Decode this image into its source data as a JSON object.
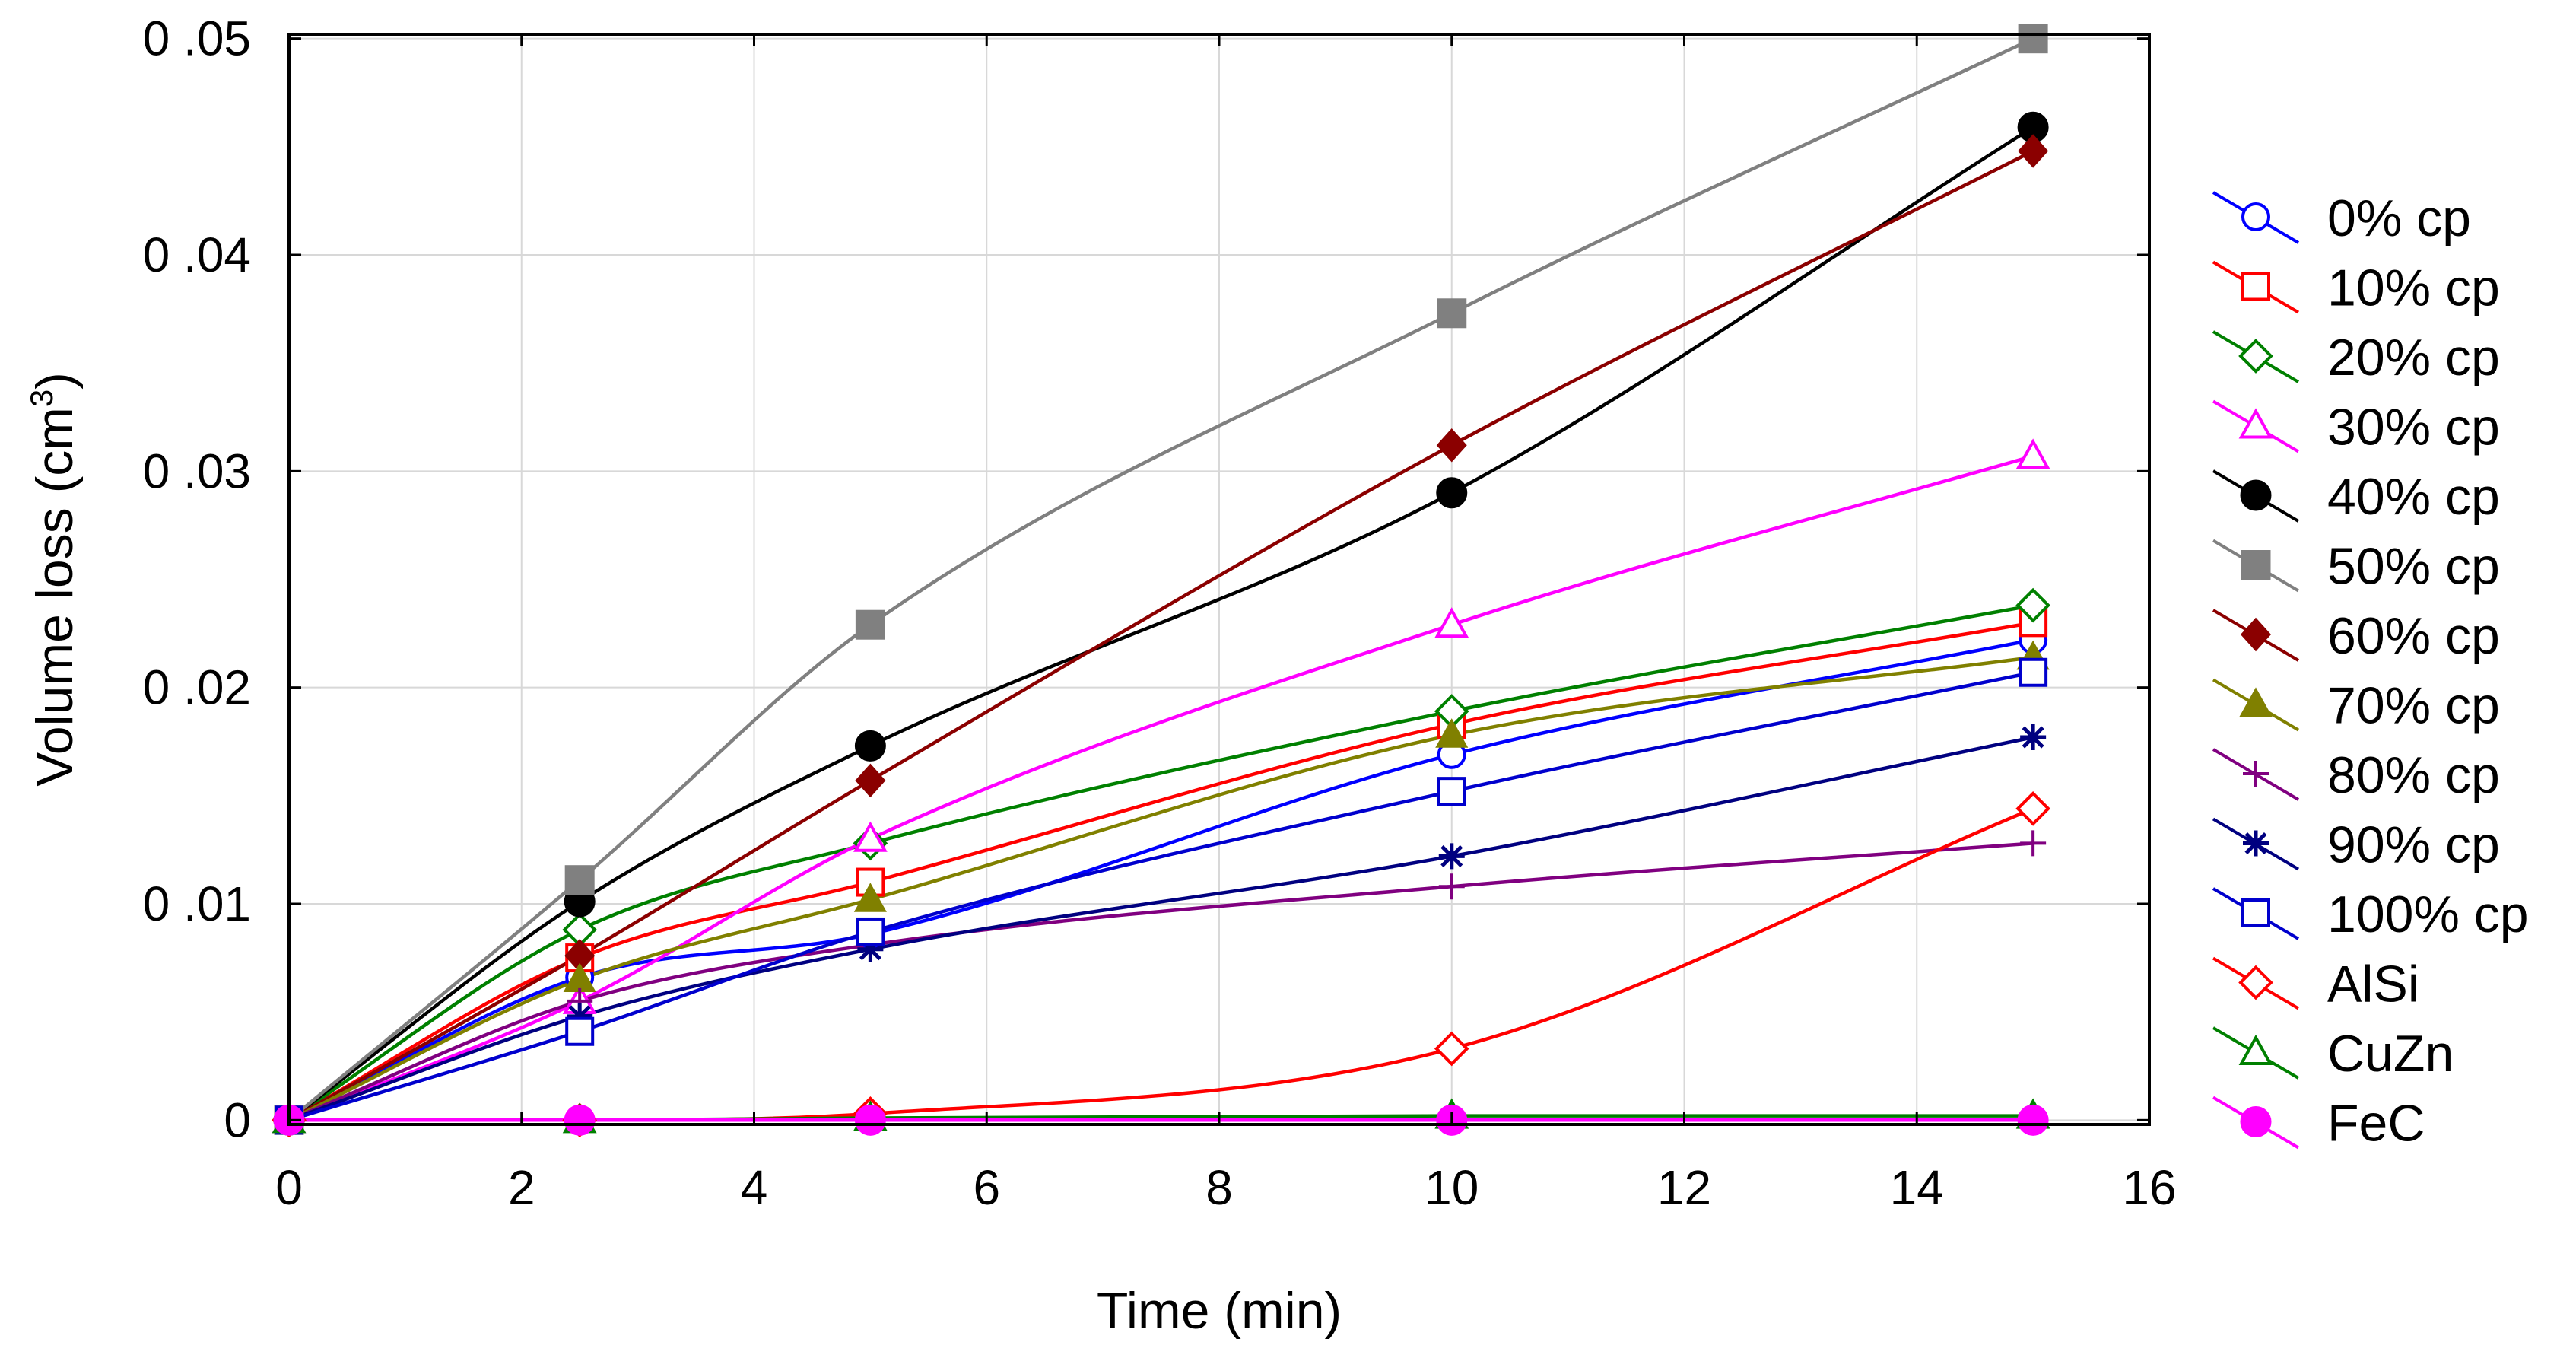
{
  "chart_data": {
    "type": "line",
    "title": "",
    "xlabel": "Time (min)",
    "ylabel": "Volume loss (cm",
    "ylabel_superscript": "3",
    "ylabel_suffix": ")",
    "xlim": [
      0,
      16
    ],
    "ylim": [
      -0.0002,
      0.0502
    ],
    "x_ticks": [
      0,
      2,
      4,
      6,
      8,
      10,
      12,
      14,
      16
    ],
    "x_tick_labels": [
      "0",
      "2",
      "4",
      "6",
      "8",
      "10",
      "12",
      "14",
      "16"
    ],
    "y_ticks": [
      0,
      0.01,
      0.02,
      0.03,
      0.04,
      0.05
    ],
    "y_tick_labels": [
      "0",
      "0 .01",
      "0 .02",
      "0 .03",
      "0 .04",
      "0 .05"
    ],
    "grid": true,
    "legend_position": "right",
    "x": [
      0,
      2.5,
      5,
      10,
      15
    ],
    "series": [
      {
        "name": "0% cp",
        "color": "#0000ff",
        "marker": "circle-open",
        "values": [
          0,
          0.0066,
          0.0086,
          0.0169,
          0.0222
        ]
      },
      {
        "name": "10% cp",
        "color": "#ff0000",
        "marker": "square-open",
        "values": [
          0,
          0.0075,
          0.011,
          0.0183,
          0.023
        ]
      },
      {
        "name": "20% cp",
        "color": "#008000",
        "marker": "diamond-open",
        "values": [
          0,
          0.0088,
          0.0128,
          0.0189,
          0.0238
        ]
      },
      {
        "name": "30% cp",
        "color": "#ff00ff",
        "marker": "triangle-open",
        "values": [
          0,
          0.0055,
          0.013,
          0.0229,
          0.0307
        ]
      },
      {
        "name": "40% cp",
        "color": "#000000",
        "marker": "circle-filled",
        "values": [
          0,
          0.0101,
          0.0173,
          0.029,
          0.0459
        ]
      },
      {
        "name": "50% cp",
        "color": "#808080",
        "marker": "square-filled",
        "values": [
          0,
          0.0111,
          0.0229,
          0.0373,
          0.05
        ]
      },
      {
        "name": "60% cp",
        "color": "#8b0000",
        "marker": "diamond-filled",
        "values": [
          0,
          0.0076,
          0.0157,
          0.0312,
          0.0448
        ]
      },
      {
        "name": "70% cp",
        "color": "#808000",
        "marker": "triangle-filled",
        "values": [
          0,
          0.0065,
          0.0102,
          0.0178,
          0.0214
        ]
      },
      {
        "name": "80% cp",
        "color": "#800080",
        "marker": "plus",
        "values": [
          0,
          0.0055,
          0.0081,
          0.0108,
          0.0128
        ]
      },
      {
        "name": "90% cp",
        "color": "#000080",
        "marker": "asterisk",
        "values": [
          0,
          0.0048,
          0.0079,
          0.0122,
          0.0177
        ]
      },
      {
        "name": "100% cp",
        "color": "#0000cd",
        "marker": "square-open",
        "values": [
          0,
          0.0041,
          0.0087,
          0.0152,
          0.0207
        ]
      },
      {
        "name": "AlSi",
        "color": "#ff0000",
        "marker": "diamond-open",
        "values": [
          0,
          0.0,
          0.0003,
          0.0033,
          0.0144
        ]
      },
      {
        "name": "CuZn",
        "color": "#008000",
        "marker": "triangle-open",
        "values": [
          0,
          0.0,
          0.0001,
          0.0002,
          0.0002
        ]
      },
      {
        "name": "FeC",
        "color": "#ff00ff",
        "marker": "circle-filled",
        "values": [
          0,
          0.0,
          0.0,
          0.0,
          0.0
        ]
      }
    ]
  }
}
